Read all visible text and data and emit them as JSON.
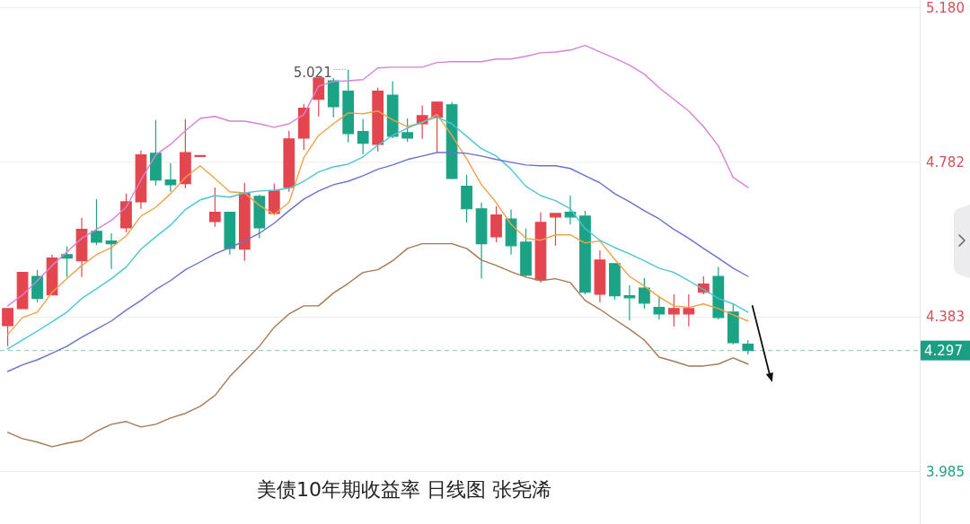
{
  "chart_data": {
    "type": "candlestick",
    "title": "美债10年期收益率 日线图 张尧浠",
    "categories": [
      null,
      null,
      null,
      null,
      null,
      null,
      null,
      null,
      null,
      null,
      null,
      null,
      null,
      null,
      null,
      null,
      null,
      null,
      null,
      null,
      null,
      null,
      null,
      null,
      null,
      null,
      null,
      null,
      null,
      null,
      null,
      null,
      null,
      null,
      null,
      null,
      null,
      null,
      null,
      null,
      null,
      null,
      null,
      null,
      null,
      null,
      null,
      null,
      null,
      null,
      null
    ],
    "ohlc": [
      [
        4.361,
        4.405,
        4.308,
        4.405
      ],
      [
        4.405,
        4.498,
        4.405,
        4.498
      ],
      [
        4.488,
        4.505,
        4.421,
        4.431
      ],
      [
        4.44,
        4.544,
        4.44,
        4.535
      ],
      [
        4.544,
        4.565,
        4.486,
        4.535
      ],
      [
        4.528,
        4.639,
        4.486,
        4.609
      ],
      [
        4.604,
        4.687,
        4.569,
        4.576
      ],
      [
        4.579,
        4.599,
        4.507,
        4.572
      ],
      [
        4.613,
        4.701,
        4.602,
        4.68
      ],
      [
        4.68,
        4.812,
        4.662,
        4.801
      ],
      [
        4.805,
        4.891,
        4.722,
        4.736
      ],
      [
        4.736,
        4.78,
        4.706,
        4.724
      ],
      [
        4.727,
        4.893,
        4.715,
        4.807
      ],
      [
        4.798,
        4.798,
        4.798,
        4.798
      ],
      [
        4.629,
        4.717,
        4.616,
        4.653
      ],
      [
        4.653,
        4.653,
        4.544,
        4.56
      ],
      [
        4.558,
        4.729,
        4.528,
        4.701
      ],
      [
        4.694,
        4.699,
        4.586,
        4.613
      ],
      [
        4.65,
        4.727,
        4.646,
        4.708
      ],
      [
        4.717,
        4.863,
        4.706,
        4.842
      ],
      [
        4.844,
        4.932,
        4.814,
        4.921
      ],
      [
        4.944,
        4.999,
        4.9,
        4.999
      ],
      [
        4.992,
        4.999,
        4.898,
        4.925
      ],
      [
        4.965,
        5.021,
        4.833,
        4.856
      ],
      [
        4.861,
        4.893,
        4.803,
        4.831
      ],
      [
        4.828,
        4.974,
        4.81,
        4.965
      ],
      [
        4.955,
        4.99,
        4.844,
        4.849
      ],
      [
        4.858,
        4.895,
        4.835,
        4.844
      ],
      [
        4.881,
        4.928,
        4.842,
        4.902
      ],
      [
        4.898,
        4.937,
        4.807,
        4.937
      ],
      [
        4.93,
        4.937,
        4.738,
        4.74
      ],
      [
        4.72,
        4.75,
        4.627,
        4.662
      ],
      [
        4.662,
        4.678,
        4.482,
        4.572
      ],
      [
        4.59,
        4.669,
        4.576,
        4.646
      ],
      [
        4.636,
        4.66,
        4.544,
        4.567
      ],
      [
        4.576,
        4.611,
        4.488,
        4.491
      ],
      [
        4.479,
        4.653,
        4.472,
        4.627
      ],
      [
        4.641,
        4.65,
        4.567,
        4.65
      ],
      [
        4.653,
        4.696,
        4.622,
        4.641
      ],
      [
        4.643,
        4.657,
        4.442,
        4.447
      ],
      [
        4.442,
        4.555,
        4.421,
        4.53
      ],
      [
        4.521,
        4.521,
        4.428,
        4.438
      ],
      [
        4.438,
        4.465,
        4.375,
        4.433
      ],
      [
        4.458,
        4.484,
        4.405,
        4.419
      ],
      [
        4.408,
        4.438,
        4.377,
        4.391
      ],
      [
        4.391,
        4.442,
        4.359,
        4.405
      ],
      [
        4.391,
        4.442,
        4.359,
        4.405
      ],
      [
        4.447,
        4.488,
        4.442,
        4.468
      ],
      [
        4.488,
        4.512,
        4.377,
        4.382
      ],
      [
        4.396,
        4.417,
        4.313,
        4.317
      ],
      [
        4.313,
        4.324,
        4.287,
        4.297
      ]
    ],
    "colors": [
      "#e2464f",
      "#e2464f",
      "#1ca386",
      "#e2464f",
      "#1ca386",
      "#e2464f",
      "#1ca386",
      "#1ca386",
      "#e2464f",
      "#e2464f",
      "#1ca386",
      "#1ca386",
      "#e2464f",
      "#e2464f",
      "#e2464f",
      "#1ca386",
      "#e2464f",
      "#1ca386",
      "#e2464f",
      "#e2464f",
      "#e2464f",
      "#e2464f",
      "#1ca386",
      "#1ca386",
      "#1ca386",
      "#e2464f",
      "#1ca386",
      "#1ca386",
      "#e2464f",
      "#e2464f",
      "#1ca386",
      "#1ca386",
      "#1ca386",
      "#e2464f",
      "#1ca386",
      "#1ca386",
      "#e2464f",
      "#e2464f",
      "#1ca386",
      "#1ca386",
      "#e2464f",
      "#1ca386",
      "#1ca386",
      "#1ca386",
      "#1ca386",
      "#e2464f",
      "#e2464f",
      "#e2464f",
      "#1ca386",
      "#1ca386",
      "#1ca386"
    ],
    "series": [
      {
        "type": "line",
        "color": "#d883d4",
        "values": [
          4.412,
          4.44,
          4.477,
          4.516,
          4.551,
          4.586,
          4.609,
          4.632,
          4.666,
          4.736,
          4.801,
          4.828,
          4.863,
          4.895,
          4.9,
          4.888,
          4.888,
          4.881,
          4.872,
          4.881,
          4.905,
          4.978,
          4.99,
          4.992,
          4.995,
          5.025,
          5.027,
          5.027,
          5.027,
          5.039,
          5.041,
          5.041,
          5.041,
          5.048,
          5.048,
          5.055,
          5.064,
          5.066,
          5.071,
          5.083,
          5.066,
          5.05,
          5.032,
          5.009,
          4.974,
          4.944,
          4.914,
          4.874,
          4.824,
          4.743,
          4.717
        ]
      },
      {
        "type": "line",
        "color": "#f0a24a",
        "values": [
          4.338,
          4.382,
          4.396,
          4.447,
          4.482,
          4.516,
          4.544,
          4.562,
          4.592,
          4.643,
          4.666,
          4.701,
          4.743,
          4.773,
          4.74,
          4.706,
          4.703,
          4.671,
          4.648,
          4.678,
          4.794,
          4.851,
          4.881,
          4.909,
          4.907,
          4.914,
          4.891,
          4.874,
          4.884,
          4.905,
          4.851,
          4.791,
          4.724,
          4.678,
          4.622,
          4.586,
          4.581,
          4.595,
          4.595,
          4.574,
          4.579,
          4.532,
          4.488,
          4.463,
          4.435,
          4.412,
          4.408,
          4.417,
          4.405,
          4.389,
          4.373
        ]
      },
      {
        "type": "line",
        "color": "#4cc5d4",
        "values": [
          4.301,
          4.324,
          4.347,
          4.371,
          4.396,
          4.431,
          4.456,
          4.482,
          4.512,
          4.558,
          4.59,
          4.62,
          4.66,
          4.685,
          4.696,
          4.692,
          4.703,
          4.708,
          4.71,
          4.715,
          4.733,
          4.757,
          4.77,
          4.777,
          4.796,
          4.826,
          4.851,
          4.87,
          4.886,
          4.898,
          4.881,
          4.849,
          4.817,
          4.798,
          4.764,
          4.72,
          4.696,
          4.683,
          4.662,
          4.611,
          4.581,
          4.562,
          4.546,
          4.528,
          4.509,
          4.498,
          4.477,
          4.454,
          4.431,
          4.417,
          4.396
        ]
      },
      {
        "type": "line",
        "color": "#6b72cc",
        "values": [
          4.243,
          4.26,
          4.273,
          4.29,
          4.308,
          4.331,
          4.352,
          4.373,
          4.401,
          4.426,
          4.454,
          4.477,
          4.505,
          4.525,
          4.546,
          4.562,
          4.579,
          4.599,
          4.625,
          4.657,
          4.687,
          4.708,
          4.724,
          4.733,
          4.747,
          4.764,
          4.775,
          4.789,
          4.798,
          4.807,
          4.807,
          4.805,
          4.798,
          4.789,
          4.782,
          4.775,
          4.773,
          4.773,
          4.766,
          4.747,
          4.729,
          4.701,
          4.68,
          4.657,
          4.636,
          4.609,
          4.586,
          4.56,
          4.535,
          4.509,
          4.488
        ]
      },
      {
        "type": "line",
        "color": "#a67853",
        "values": [
          4.086,
          4.07,
          4.061,
          4.049,
          4.058,
          4.065,
          4.089,
          4.107,
          4.114,
          4.1,
          4.107,
          4.123,
          4.135,
          4.153,
          4.181,
          4.23,
          4.269,
          4.308,
          4.357,
          4.391,
          4.412,
          4.412,
          4.445,
          4.47,
          4.498,
          4.505,
          4.528,
          4.56,
          4.572,
          4.572,
          4.572,
          4.56,
          4.53,
          4.516,
          4.5,
          4.486,
          4.477,
          4.482,
          4.472,
          4.426,
          4.403,
          4.377,
          4.352,
          4.324,
          4.28,
          4.269,
          4.257,
          4.257,
          4.262,
          4.278,
          4.262
        ]
      }
    ],
    "ylim": [
      3.85,
      5.2
    ],
    "yticks": [
      {
        "value": 5.18,
        "label": "5.180"
      },
      4.782,
      4.383,
      3.985
    ],
    "grid": "y",
    "ref_lines": [
      {
        "axis": "y",
        "value": 4.297,
        "label": "4.297",
        "color": "#1a9f84",
        "line_style": "dashed"
      }
    ],
    "annotations": [
      "5.021"
    ]
  }
}
